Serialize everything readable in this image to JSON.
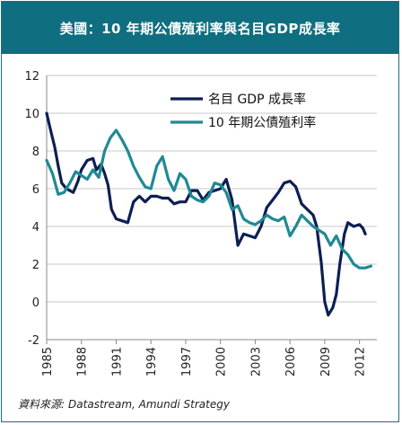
{
  "header": {
    "title": "美國：10 年期公債殖利率與名目GDP成長率"
  },
  "source": {
    "label": "資料來源:",
    "text": "Datastream, Amundi Strategy"
  },
  "colors": {
    "header_bg": "#0f6e80",
    "gdp": "#0d1f52",
    "yield": "#1f8a93",
    "grid": "#c8c8c8"
  },
  "chart_data": {
    "type": "line",
    "title": "美國：10 年期公債殖利率與名目GDP成長率",
    "xlabel": "",
    "ylabel": "",
    "xlim": [
      1985,
      2013.5
    ],
    "ylim": [
      -2,
      12
    ],
    "yticks": [
      "12",
      "10",
      "8",
      "6",
      "4",
      "2",
      "0",
      "-2"
    ],
    "xticks": [
      "1985",
      "1988",
      "1991",
      "1994",
      "1997",
      "2000",
      "2003",
      "2006",
      "2009",
      "2012"
    ],
    "grid": "horizontal",
    "legend": "top-right",
    "series": [
      {
        "name": "名目 GDP 成長率",
        "color": "#0d1f52",
        "points": [
          [
            1985.0,
            10.0
          ],
          [
            1985.3,
            9.2
          ],
          [
            1985.7,
            8.2
          ],
          [
            1986.0,
            7.2
          ],
          [
            1986.3,
            6.3
          ],
          [
            1986.7,
            6.0
          ],
          [
            1987.0,
            5.9
          ],
          [
            1987.3,
            5.8
          ],
          [
            1987.7,
            6.4
          ],
          [
            1988.0,
            7.0
          ],
          [
            1988.5,
            7.5
          ],
          [
            1989.0,
            7.6
          ],
          [
            1989.3,
            7.0
          ],
          [
            1989.7,
            7.3
          ],
          [
            1990.0,
            6.8
          ],
          [
            1990.3,
            6.2
          ],
          [
            1990.6,
            4.9
          ],
          [
            1991.0,
            4.4
          ],
          [
            1991.5,
            4.3
          ],
          [
            1992.0,
            4.2
          ],
          [
            1992.5,
            5.3
          ],
          [
            1993.0,
            5.6
          ],
          [
            1993.5,
            5.3
          ],
          [
            1994.0,
            5.6
          ],
          [
            1994.5,
            5.6
          ],
          [
            1995.0,
            5.5
          ],
          [
            1995.5,
            5.5
          ],
          [
            1996.0,
            5.2
          ],
          [
            1996.5,
            5.3
          ],
          [
            1997.0,
            5.3
          ],
          [
            1997.5,
            5.9
          ],
          [
            1998.0,
            5.9
          ],
          [
            1998.5,
            5.4
          ],
          [
            1999.0,
            5.8
          ],
          [
            1999.5,
            5.9
          ],
          [
            2000.0,
            6.0
          ],
          [
            2000.5,
            6.5
          ],
          [
            2001.0,
            5.4
          ],
          [
            2001.5,
            3.0
          ],
          [
            2002.0,
            3.6
          ],
          [
            2002.5,
            3.5
          ],
          [
            2003.0,
            3.4
          ],
          [
            2003.5,
            4.0
          ],
          [
            2004.0,
            5.0
          ],
          [
            2004.5,
            5.4
          ],
          [
            2005.0,
            5.8
          ],
          [
            2005.5,
            6.3
          ],
          [
            2006.0,
            6.4
          ],
          [
            2006.5,
            6.1
          ],
          [
            2007.0,
            5.2
          ],
          [
            2007.5,
            4.9
          ],
          [
            2008.0,
            4.6
          ],
          [
            2008.3,
            4.0
          ],
          [
            2008.7,
            2.1
          ],
          [
            2009.0,
            0.0
          ],
          [
            2009.3,
            -0.7
          ],
          [
            2009.7,
            -0.3
          ],
          [
            2010.0,
            0.4
          ],
          [
            2010.3,
            2.0
          ],
          [
            2010.7,
            3.6
          ],
          [
            2011.0,
            4.2
          ],
          [
            2011.5,
            4.0
          ],
          [
            2012.0,
            4.1
          ],
          [
            2012.3,
            3.9
          ],
          [
            2012.5,
            3.6
          ]
        ]
      },
      {
        "name": "10 年期公債殖利率",
        "color": "#1f8a93",
        "points": [
          [
            1985.0,
            7.5
          ],
          [
            1985.5,
            6.8
          ],
          [
            1986.0,
            5.7
          ],
          [
            1986.5,
            5.8
          ],
          [
            1987.0,
            6.3
          ],
          [
            1987.5,
            6.9
          ],
          [
            1988.0,
            6.7
          ],
          [
            1988.5,
            6.5
          ],
          [
            1989.0,
            7.0
          ],
          [
            1989.5,
            6.6
          ],
          [
            1990.0,
            8.0
          ],
          [
            1990.5,
            8.7
          ],
          [
            1991.0,
            9.1
          ],
          [
            1991.5,
            8.6
          ],
          [
            1992.0,
            8.0
          ],
          [
            1992.5,
            7.2
          ],
          [
            1993.0,
            6.6
          ],
          [
            1993.5,
            6.1
          ],
          [
            1994.0,
            6.0
          ],
          [
            1994.5,
            7.2
          ],
          [
            1995.0,
            7.7
          ],
          [
            1995.5,
            6.5
          ],
          [
            1996.0,
            5.9
          ],
          [
            1996.5,
            6.8
          ],
          [
            1997.0,
            6.5
          ],
          [
            1997.5,
            5.6
          ],
          [
            1998.0,
            5.4
          ],
          [
            1998.5,
            5.3
          ],
          [
            1999.0,
            5.6
          ],
          [
            1999.5,
            6.3
          ],
          [
            2000.0,
            6.2
          ],
          [
            2000.5,
            5.8
          ],
          [
            2001.0,
            4.9
          ],
          [
            2001.5,
            5.1
          ],
          [
            2002.0,
            4.4
          ],
          [
            2002.5,
            4.2
          ],
          [
            2003.0,
            4.1
          ],
          [
            2003.5,
            4.3
          ],
          [
            2004.0,
            4.6
          ],
          [
            2004.5,
            4.4
          ],
          [
            2005.0,
            4.3
          ],
          [
            2005.5,
            4.5
          ],
          [
            2006.0,
            3.5
          ],
          [
            2006.5,
            4.0
          ],
          [
            2007.0,
            4.6
          ],
          [
            2007.5,
            4.3
          ],
          [
            2008.0,
            4.0
          ],
          [
            2008.5,
            3.8
          ],
          [
            2009.0,
            3.6
          ],
          [
            2009.5,
            3.0
          ],
          [
            2010.0,
            3.5
          ],
          [
            2010.5,
            2.8
          ],
          [
            2011.0,
            2.5
          ],
          [
            2011.5,
            2.0
          ],
          [
            2012.0,
            1.8
          ],
          [
            2012.5,
            1.8
          ],
          [
            2013.0,
            1.9
          ]
        ]
      }
    ]
  }
}
